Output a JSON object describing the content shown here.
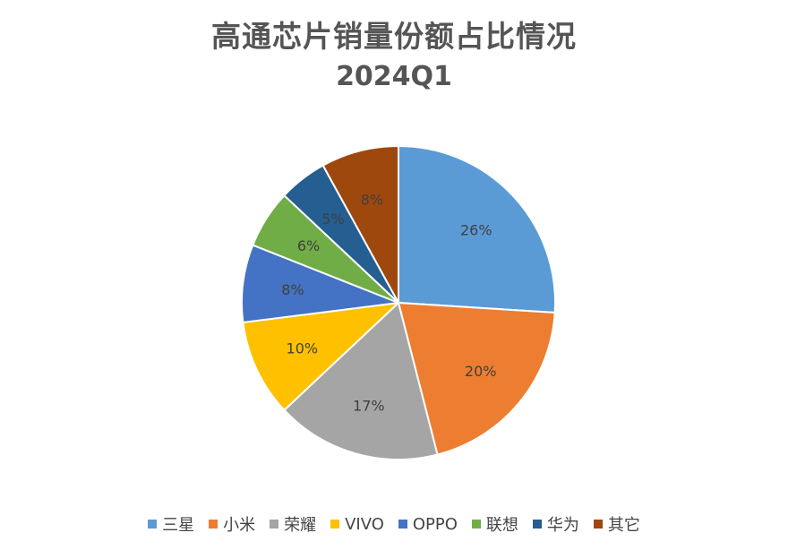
{
  "chart_data": {
    "type": "pie",
    "title": "高通芯片销量份额占比情况",
    "subtitle": "2024Q1",
    "categories": [
      "三星",
      "小米",
      "荣耀",
      "VIVO",
      "OPPO",
      "联想",
      "华为",
      "其它"
    ],
    "values": [
      26,
      20,
      17,
      10,
      8,
      6,
      5,
      8
    ],
    "labels": [
      "26%",
      "20%",
      "17%",
      "10%",
      "8%",
      "6%",
      "5%",
      "8%"
    ],
    "colors": [
      "#5B9BD5",
      "#ED7D31",
      "#A5A5A5",
      "#FFC000",
      "#4472C4",
      "#70AD47",
      "#255E91",
      "#9E480E"
    ],
    "legend_position": "bottom"
  }
}
